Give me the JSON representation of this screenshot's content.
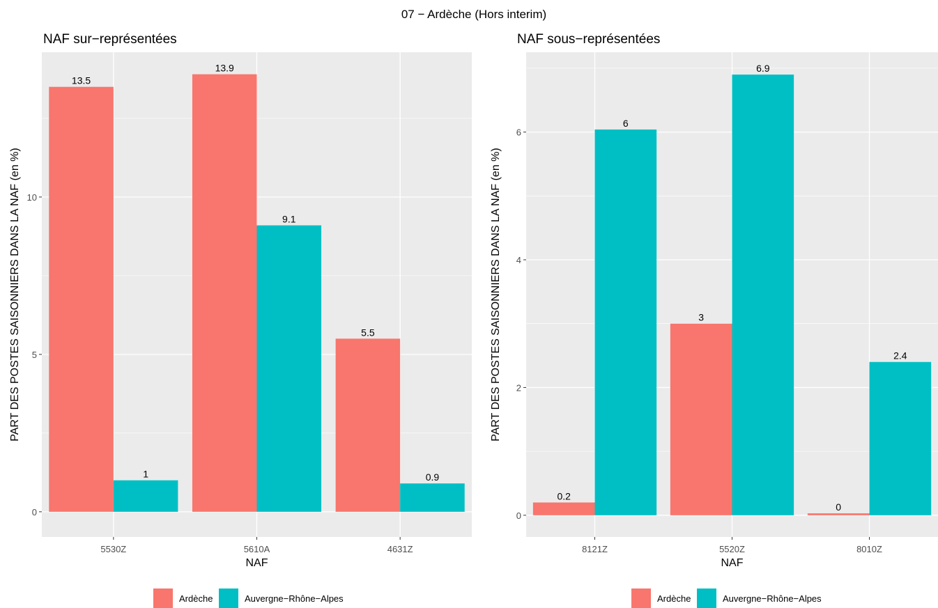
{
  "title": "07 − Ardèche (Hors interim)",
  "colors": {
    "ardeche": "#F8766D",
    "region": "#00BFC4",
    "panel_bg": "#EBEBEB",
    "grid": "#FFFFFF",
    "text_dark": "#000000",
    "tick_text": "#4D4D4D"
  },
  "chart_data": [
    {
      "type": "bar",
      "title": "NAF sur−représentées",
      "xlabel": "NAF",
      "ylabel": "PART DES POSTES SAISONNIERS DANS LA NAF (en %)",
      "categories": [
        "5530Z",
        "5610A",
        "4631Z"
      ],
      "ylim": [
        -0.8,
        14.6
      ],
      "yticks": [
        0,
        5,
        10
      ],
      "grid": true,
      "legend_position": "bottom",
      "series": [
        {
          "name": "Ardèche",
          "values": [
            13.5,
            13.9,
            5.5
          ],
          "labels": [
            "13.5",
            "13.9",
            "5.5"
          ]
        },
        {
          "name": "Auvergne−Rhône−Alpes",
          "values": [
            1.0,
            9.1,
            0.9
          ],
          "labels": [
            "1",
            "9.1",
            "0.9"
          ]
        }
      ]
    },
    {
      "type": "bar",
      "title": "NAF sous−représentées",
      "xlabel": "NAF",
      "ylabel": "PART DES POSTES SAISONNIERS DANS LA NAF (en %)",
      "categories": [
        "8121Z",
        "5520Z",
        "8010Z"
      ],
      "ylim": [
        -0.34,
        7.25
      ],
      "yticks": [
        0,
        2,
        4,
        6
      ],
      "grid": true,
      "legend_position": "bottom",
      "series": [
        {
          "name": "Ardèche",
          "values": [
            0.2,
            3.0,
            0.03
          ],
          "labels": [
            "0.2",
            "3",
            "0"
          ]
        },
        {
          "name": "Auvergne−Rhône−Alpes",
          "values": [
            6.04,
            6.9,
            2.4
          ],
          "labels": [
            "6",
            "6.9",
            "2.4"
          ]
        }
      ]
    }
  ]
}
